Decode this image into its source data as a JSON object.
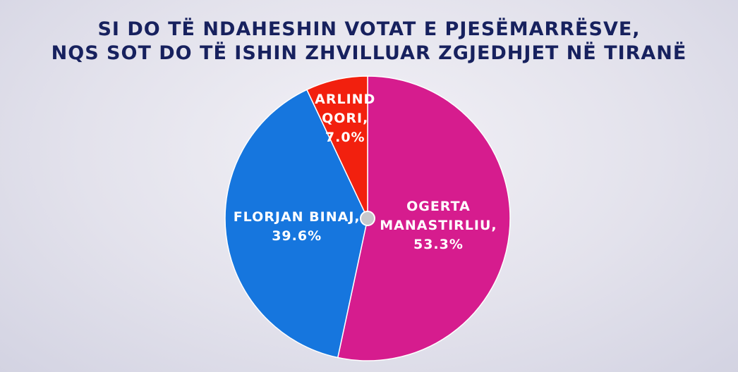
{
  "chart_data": {
    "type": "pie",
    "title": [
      "SI DO TË NDAHESHIN VOTAT E PJESËMARRËSVE,",
      "NQS SOT DO TË ISHIN ZHVILLUAR ZGJEDHJET NË TIRANË"
    ],
    "categories": [
      "OGERTA MANASTIRLIU,",
      "FLORJAN BINAJ,",
      "ARLIND QORI,"
    ],
    "values": [
      53.3,
      39.6,
      7.0
    ],
    "value_labels": [
      "53.3%",
      "39.6%",
      "7.0%"
    ],
    "colors": [
      "#d61c8e",
      "#1676de",
      "#f2200e"
    ]
  }
}
